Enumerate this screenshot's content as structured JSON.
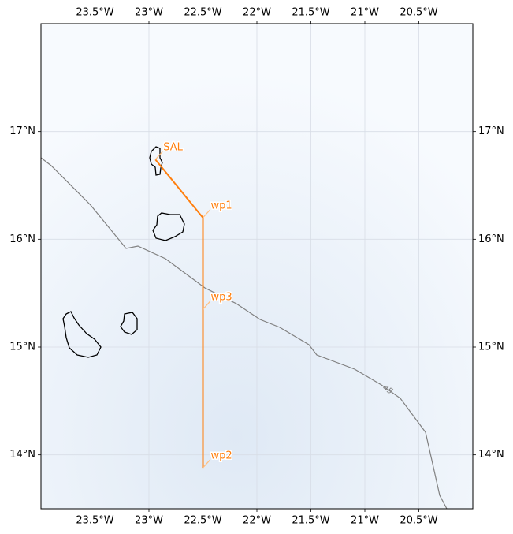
{
  "map": {
    "xlim": [
      -24.0,
      -20.0
    ],
    "ylim": [
      13.5,
      18.0
    ],
    "xticks": [
      {
        "value": -23.5,
        "label": "23.5°W"
      },
      {
        "value": -23.0,
        "label": "23°W"
      },
      {
        "value": -22.5,
        "label": "22.5°W"
      },
      {
        "value": -22.0,
        "label": "22°W"
      },
      {
        "value": -21.5,
        "label": "21.5°W"
      },
      {
        "value": -21.0,
        "label": "21°W"
      },
      {
        "value": -20.5,
        "label": "20.5°W"
      }
    ],
    "yticks": [
      {
        "value": 14,
        "label": "14°N"
      },
      {
        "value": 15,
        "label": "15°N"
      },
      {
        "value": 16,
        "label": "16°N"
      },
      {
        "value": 17,
        "label": "17°N"
      }
    ],
    "waypoints": [
      {
        "label": "SAL",
        "lon": -22.94,
        "lat": 16.74
      },
      {
        "label": "wp1",
        "lon": -22.5,
        "lat": 16.2
      },
      {
        "label": "wp3",
        "lon": -22.5,
        "lat": 15.35
      },
      {
        "label": "wp2",
        "lon": -22.5,
        "lat": 13.88
      }
    ],
    "contour_label": "45"
  }
}
